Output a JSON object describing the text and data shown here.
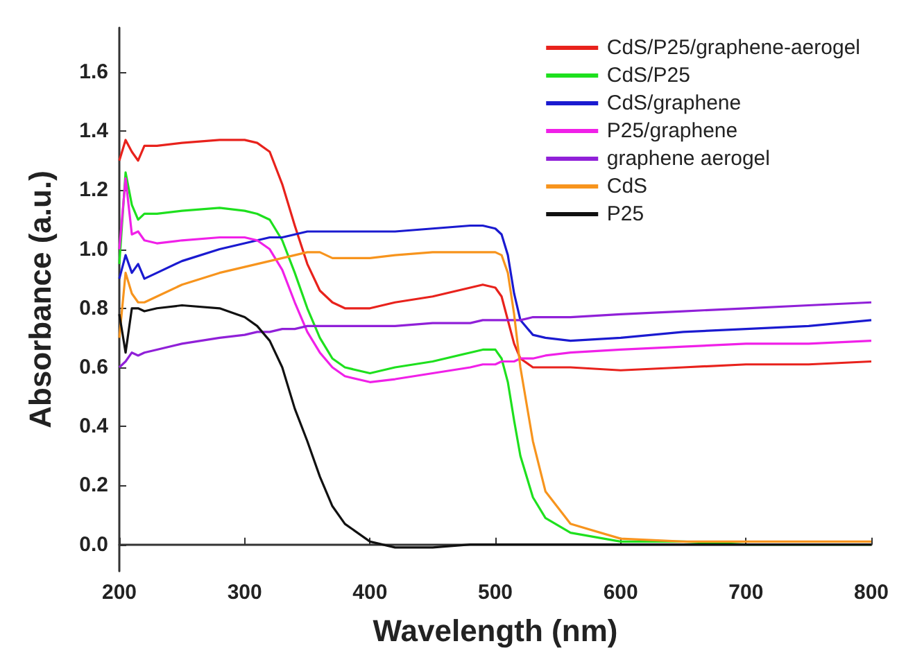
{
  "chart_data": {
    "type": "line",
    "xlabel": "Wavelength (nm)",
    "ylabel": "Absorbance (a.u.)",
    "x": [
      200,
      205,
      210,
      215,
      220,
      230,
      250,
      280,
      300,
      310,
      320,
      330,
      340,
      350,
      360,
      370,
      380,
      400,
      420,
      450,
      480,
      490,
      500,
      505,
      510,
      515,
      520,
      530,
      540,
      560,
      600,
      650,
      700,
      750,
      800
    ],
    "series": [
      {
        "name": "CdS/P25/graphene-aerogel",
        "color": "#e8221c",
        "values": [
          1.3,
          1.37,
          1.33,
          1.3,
          1.35,
          1.35,
          1.36,
          1.37,
          1.37,
          1.36,
          1.33,
          1.22,
          1.08,
          0.95,
          0.86,
          0.82,
          0.8,
          0.8,
          0.82,
          0.84,
          0.87,
          0.88,
          0.87,
          0.84,
          0.76,
          0.68,
          0.63,
          0.6,
          0.6,
          0.6,
          0.59,
          0.6,
          0.61,
          0.61,
          0.62
        ]
      },
      {
        "name": "CdS/P25",
        "color": "#1ee01e",
        "values": [
          0.95,
          1.26,
          1.15,
          1.1,
          1.12,
          1.12,
          1.13,
          1.14,
          1.13,
          1.12,
          1.1,
          1.03,
          0.92,
          0.8,
          0.7,
          0.63,
          0.6,
          0.58,
          0.6,
          0.62,
          0.65,
          0.66,
          0.66,
          0.63,
          0.55,
          0.42,
          0.3,
          0.16,
          0.09,
          0.04,
          0.01,
          0.01,
          0.0,
          0.0,
          0.0
        ]
      },
      {
        "name": "CdS/graphene",
        "color": "#1a1ad0",
        "values": [
          0.9,
          0.98,
          0.92,
          0.95,
          0.9,
          0.92,
          0.96,
          1.0,
          1.02,
          1.03,
          1.04,
          1.04,
          1.05,
          1.06,
          1.06,
          1.06,
          1.06,
          1.06,
          1.06,
          1.07,
          1.08,
          1.08,
          1.07,
          1.05,
          0.98,
          0.85,
          0.76,
          0.71,
          0.7,
          0.69,
          0.7,
          0.72,
          0.73,
          0.74,
          0.76
        ]
      },
      {
        "name": "P25/graphene",
        "color": "#f020e8",
        "values": [
          1.0,
          1.24,
          1.05,
          1.06,
          1.03,
          1.02,
          1.03,
          1.04,
          1.04,
          1.03,
          1.0,
          0.93,
          0.82,
          0.72,
          0.65,
          0.6,
          0.57,
          0.55,
          0.56,
          0.58,
          0.6,
          0.61,
          0.61,
          0.62,
          0.62,
          0.62,
          0.63,
          0.63,
          0.64,
          0.65,
          0.66,
          0.67,
          0.68,
          0.68,
          0.69
        ]
      },
      {
        "name": "graphene aerogel",
        "color": "#9020d8",
        "values": [
          0.6,
          0.62,
          0.65,
          0.64,
          0.65,
          0.66,
          0.68,
          0.7,
          0.71,
          0.72,
          0.72,
          0.73,
          0.73,
          0.74,
          0.74,
          0.74,
          0.74,
          0.74,
          0.74,
          0.75,
          0.75,
          0.76,
          0.76,
          0.76,
          0.76,
          0.76,
          0.76,
          0.77,
          0.77,
          0.77,
          0.78,
          0.79,
          0.8,
          0.81,
          0.82
        ]
      },
      {
        "name": "CdS",
        "color": "#f7941d",
        "values": [
          0.7,
          0.92,
          0.85,
          0.82,
          0.82,
          0.84,
          0.88,
          0.92,
          0.94,
          0.95,
          0.96,
          0.97,
          0.98,
          0.99,
          0.99,
          0.97,
          0.97,
          0.97,
          0.98,
          0.99,
          0.99,
          0.99,
          0.99,
          0.98,
          0.92,
          0.78,
          0.6,
          0.35,
          0.18,
          0.07,
          0.02,
          0.01,
          0.01,
          0.01,
          0.01
        ]
      },
      {
        "name": "P25",
        "color": "#111111",
        "values": [
          0.78,
          0.65,
          0.8,
          0.8,
          0.79,
          0.8,
          0.81,
          0.8,
          0.77,
          0.74,
          0.69,
          0.6,
          0.46,
          0.35,
          0.23,
          0.13,
          0.07,
          0.01,
          -0.01,
          -0.01,
          0.0,
          0.0,
          0.0,
          0.0,
          0.0,
          0.0,
          0.0,
          0.0,
          0.0,
          0.0,
          0.0,
          0.0,
          0.0,
          0.0,
          0.0
        ]
      }
    ],
    "xlim": [
      200,
      800
    ],
    "xticks": [
      200,
      300,
      400,
      500,
      600,
      700,
      800
    ],
    "ylim": [
      -0.09,
      1.75
    ],
    "yticks": [
      {
        "value": 0,
        "label": "0.0"
      },
      0.2,
      0.4,
      0.6,
      0.8,
      {
        "value": 1,
        "label": "1.0"
      },
      1.2,
      1.4,
      1.6
    ],
    "legend": "top right",
    "grid": false,
    "marker": "none",
    "line_style": "solid"
  }
}
